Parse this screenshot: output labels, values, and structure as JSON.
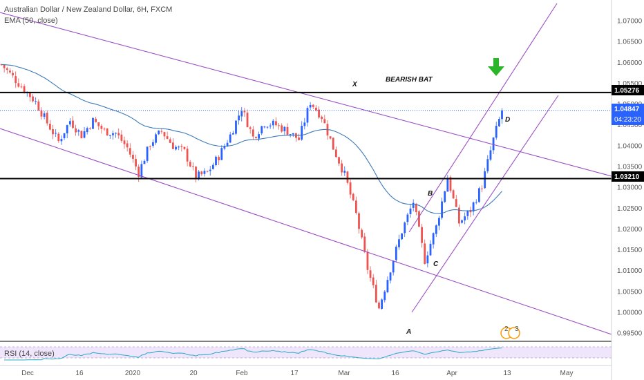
{
  "legend": {
    "title": "Australian Dollar / New Zealand Dollar, 6H, FXCM",
    "ema": "EMA (50, close)",
    "rsi": "RSI (14, close)"
  },
  "colors": {
    "up": "#2962ff",
    "down": "#ef5350",
    "ema": "#3d7ab8",
    "channel": "#9c4fc4",
    "hline": "#000000",
    "price_line": "#2962ff",
    "arrow": "#2bb52b",
    "rsi": "#26a9c9",
    "rsi_band": "#f0e6fb"
  },
  "annotations": {
    "x": "X",
    "a": "A",
    "b": "B",
    "c": "C",
    "d": "D",
    "pattern": "BEARISH BAT"
  },
  "price_tags": {
    "upper_level": "1.05276",
    "current": "1.04847",
    "countdown": "04:23:20",
    "lower_level": "1.03210"
  },
  "event_badges": [
    "2",
    "3"
  ],
  "chart_data": {
    "type": "candlestick",
    "title": "Australian Dollar / New Zealand Dollar, 6H, FXCM",
    "y_ticks": [
      "1.07000",
      "1.06500",
      "1.06000",
      "1.05500",
      "1.05000",
      "1.04500",
      "1.04000",
      "1.03500",
      "1.03000",
      "1.02500",
      "1.02000",
      "1.01500",
      "1.01000",
      "1.00500",
      "1.00000",
      "0.99500"
    ],
    "y_range": [
      0.993,
      1.0735
    ],
    "x_ticks": [
      "Dec",
      "16",
      "2020",
      "20",
      "Feb",
      "17",
      "Mar",
      "16",
      "Apr",
      "13",
      "May"
    ],
    "horizontal_levels": [
      1.05276,
      1.0321
    ],
    "current_price": 1.04847,
    "ema_period": 50,
    "rsi_period": 14,
    "close_path": [
      {
        "t": 0,
        "v": 1.0595
      },
      {
        "t": 4,
        "v": 1.0565
      },
      {
        "t": 8,
        "v": 1.0535
      },
      {
        "t": 12,
        "v": 1.0505
      },
      {
        "t": 16,
        "v": 1.0455
      },
      {
        "t": 20,
        "v": 1.041
      },
      {
        "t": 24,
        "v": 1.046
      },
      {
        "t": 28,
        "v": 1.0425
      },
      {
        "t": 32,
        "v": 1.046
      },
      {
        "t": 36,
        "v": 1.0435
      },
      {
        "t": 40,
        "v": 1.043
      },
      {
        "t": 44,
        "v": 1.0395
      },
      {
        "t": 48,
        "v": 1.0335
      },
      {
        "t": 52,
        "v": 1.0405
      },
      {
        "t": 56,
        "v": 1.0435
      },
      {
        "t": 60,
        "v": 1.04
      },
      {
        "t": 64,
        "v": 1.0385
      },
      {
        "t": 68,
        "v": 1.0325
      },
      {
        "t": 72,
        "v": 1.0335
      },
      {
        "t": 76,
        "v": 1.0375
      },
      {
        "t": 80,
        "v": 1.0425
      },
      {
        "t": 84,
        "v": 1.049
      },
      {
        "t": 88,
        "v": 1.042
      },
      {
        "t": 92,
        "v": 1.0455
      },
      {
        "t": 96,
        "v": 1.045
      },
      {
        "t": 100,
        "v": 1.0435
      },
      {
        "t": 104,
        "v": 1.0415
      },
      {
        "t": 108,
        "v": 1.0505
      },
      {
        "t": 112,
        "v": 1.047
      },
      {
        "t": 116,
        "v": 1.0395
      },
      {
        "t": 120,
        "v": 1.033
      },
      {
        "t": 124,
        "v": 1.0235
      },
      {
        "t": 128,
        "v": 1.0105
      },
      {
        "t": 132,
        "v": 1.001
      },
      {
        "t": 136,
        "v": 1.0105
      },
      {
        "t": 140,
        "v": 1.0195
      },
      {
        "t": 144,
        "v": 1.0265
      },
      {
        "t": 148,
        "v": 1.0125
      },
      {
        "t": 152,
        "v": 1.0205
      },
      {
        "t": 156,
        "v": 1.0325
      },
      {
        "t": 160,
        "v": 1.0215
      },
      {
        "t": 164,
        "v": 1.0245
      },
      {
        "t": 168,
        "v": 1.0305
      },
      {
        "t": 172,
        "v": 1.0415
      },
      {
        "t": 175,
        "v": 1.0485
      }
    ]
  }
}
